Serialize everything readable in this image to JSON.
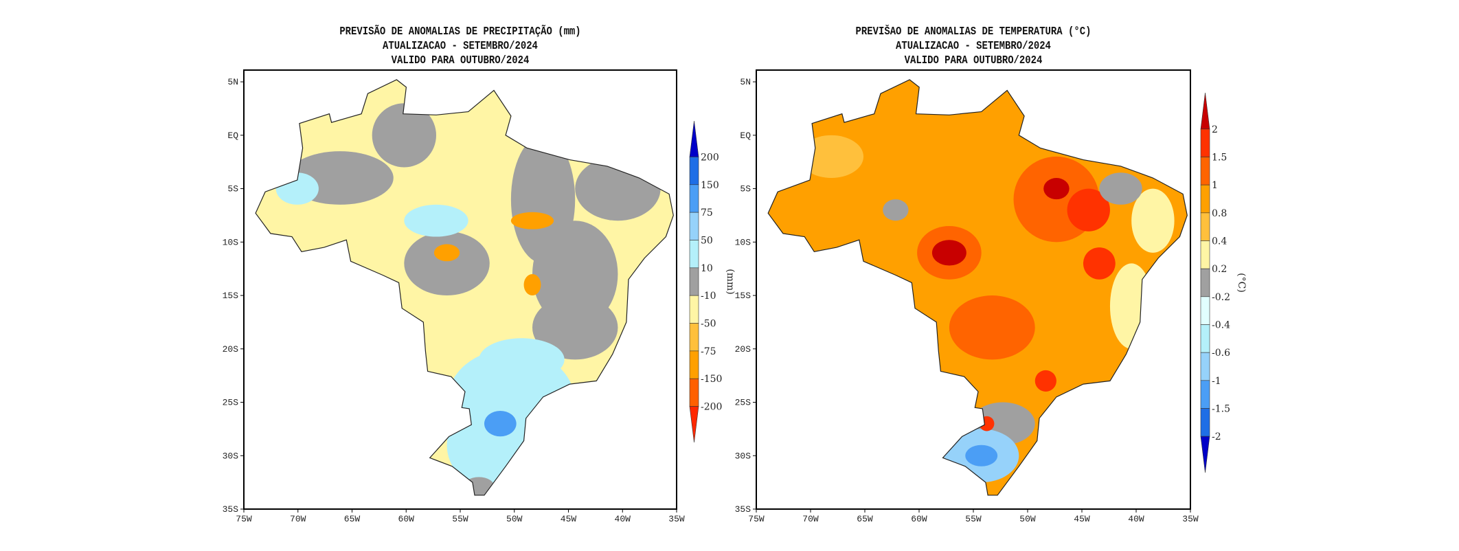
{
  "maps": [
    {
      "id": "precip",
      "title_lines": [
        "PREVISÃO DE ANOMALIAS DE PRECIPITAÇÃO (mm)",
        "ATUALIZACAO - SETEMBRO/2024",
        "VALIDO PARA OUTUBRO/2024"
      ],
      "unit_label": "(mm)",
      "base_color": "#fff5a5",
      "colorbar": {
        "labels": [
          "200",
          "150",
          "75",
          "50",
          "10",
          "-10",
          "-50",
          "-75",
          "-150",
          "-200"
        ],
        "colors": [
          "#0000c8",
          "#1e6ee6",
          "#4b9ef5",
          "#96d2fa",
          "#b4f0fa",
          "#a0a0a0",
          "#fff5a5",
          "#ffc03c",
          "#ffa000",
          "#ff6000",
          "#ff2800"
        ]
      }
    },
    {
      "id": "temp",
      "title_lines": [
        "PREVIŠAO DE ANOMALIAS DE TEMPERATURA (°C)",
        "ATUALIZACAO - SETEMBRO/2024",
        "VALIDO PARA OUTUBRO/2024"
      ],
      "unit_label": "(°C)",
      "base_color": "#ffa000",
      "colorbar": {
        "labels": [
          "2",
          "1.5",
          "1",
          "0.8",
          "0.4",
          "0.2",
          "-0.2",
          "-0.4",
          "-0.6",
          "-1",
          "-1.5",
          "-2"
        ],
        "colors": [
          "#c80000",
          "#ff3200",
          "#ff6400",
          "#ffa000",
          "#ffc03c",
          "#fff5a5",
          "#a0a0a0",
          "#e1ffff",
          "#b4f0fa",
          "#96d2fa",
          "#4b9ef5",
          "#1e6ee6",
          "#0000c8"
        ]
      }
    }
  ],
  "axes": {
    "lon_labels": [
      "75W",
      "70W",
      "65W",
      "60W",
      "55W",
      "50W",
      "45W",
      "40W",
      "35W"
    ],
    "lat_labels": [
      "5N",
      "EQ",
      "5S",
      "10S",
      "15S",
      "20S",
      "25S",
      "30S",
      "35S"
    ]
  }
}
